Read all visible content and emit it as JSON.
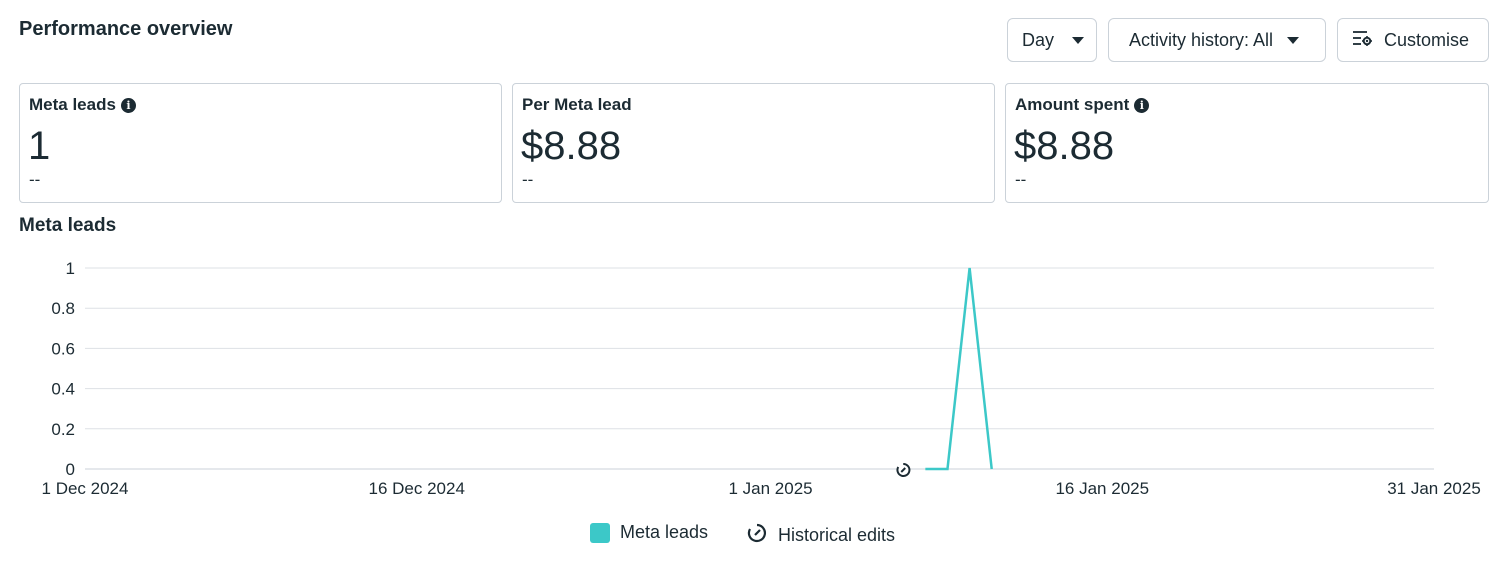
{
  "header": {
    "title": "Performance overview",
    "day_label": "Day",
    "activity_label": "Activity history: All",
    "customise_label": "Customise"
  },
  "cards": [
    {
      "label": "Meta leads",
      "value": "1",
      "sub": "--",
      "info": true
    },
    {
      "label": "Per Meta lead",
      "value": "$8.88",
      "sub": "--",
      "info": false
    },
    {
      "label": "Amount spent",
      "value": "$8.88",
      "sub": "--",
      "info": true
    }
  ],
  "colors": {
    "series": "#3cc8c8",
    "text": "#1c2b33",
    "grid": "#dde1e5",
    "border": "#cbd2d9"
  },
  "chart_data": {
    "type": "line",
    "title": "Meta leads",
    "ylim": [
      0,
      1
    ],
    "yticks": [
      "0",
      "0.2",
      "0.4",
      "0.6",
      "0.8",
      "1"
    ],
    "xticks": [
      "1 Dec 2024",
      "16 Dec 2024",
      "1 Jan 2025",
      "16 Jan 2025",
      "31 Jan 2025"
    ],
    "grid": true,
    "legend_position": "bottom-center",
    "series": [
      {
        "name": "Meta leads",
        "x": [
          "2025-01-08",
          "2025-01-09",
          "2025-01-10",
          "2025-01-11"
        ],
        "values": [
          0,
          0,
          1,
          0
        ]
      }
    ],
    "annotations": [
      {
        "type": "historical-edit",
        "x": "2025-01-07"
      }
    ],
    "legend": [
      "Meta leads",
      "Historical edits"
    ]
  }
}
